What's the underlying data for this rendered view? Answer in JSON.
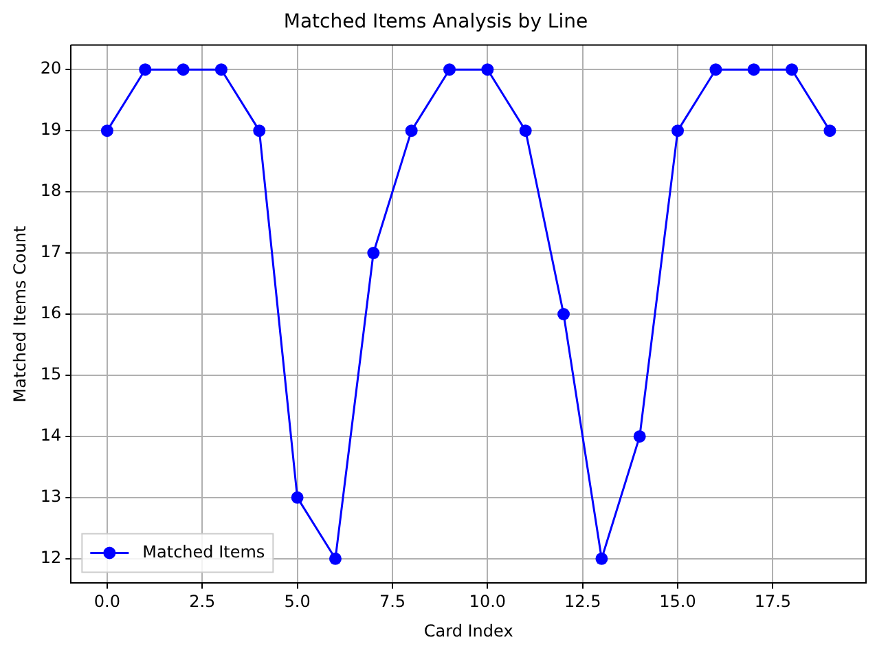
{
  "chart_data": {
    "type": "line",
    "title": "Matched Items Analysis by Line",
    "xlabel": "Card Index",
    "ylabel": "Matched Items Count",
    "x": [
      0,
      1,
      2,
      3,
      4,
      5,
      6,
      7,
      8,
      9,
      10,
      11,
      12,
      13,
      14,
      15,
      16,
      17,
      18,
      19
    ],
    "series": [
      {
        "name": "Matched Items",
        "color": "#0000ff",
        "values": [
          19,
          20,
          20,
          20,
          19,
          13,
          12,
          17,
          19,
          20,
          20,
          19,
          16,
          12,
          14,
          19,
          20,
          20,
          20,
          19
        ]
      }
    ],
    "xlim": [
      -0.95,
      19.95
    ],
    "xticks": [
      {
        "value": 0,
        "label": "0.0"
      },
      {
        "value": 2.5,
        "label": "2.5"
      },
      {
        "value": 5,
        "label": "5.0"
      },
      {
        "value": 7.5,
        "label": "7.5"
      },
      {
        "value": 10,
        "label": "10.0"
      },
      {
        "value": 12.5,
        "label": "12.5"
      },
      {
        "value": 15,
        "label": "15.0"
      },
      {
        "value": 17.5,
        "label": "17.5"
      }
    ],
    "ylim": [
      11.6,
      20.4
    ],
    "yticks": [
      12,
      13,
      14,
      15,
      16,
      17,
      18,
      19,
      20
    ],
    "grid": true,
    "legend": "bottom left",
    "marker": "circle",
    "line_style": "solid"
  }
}
